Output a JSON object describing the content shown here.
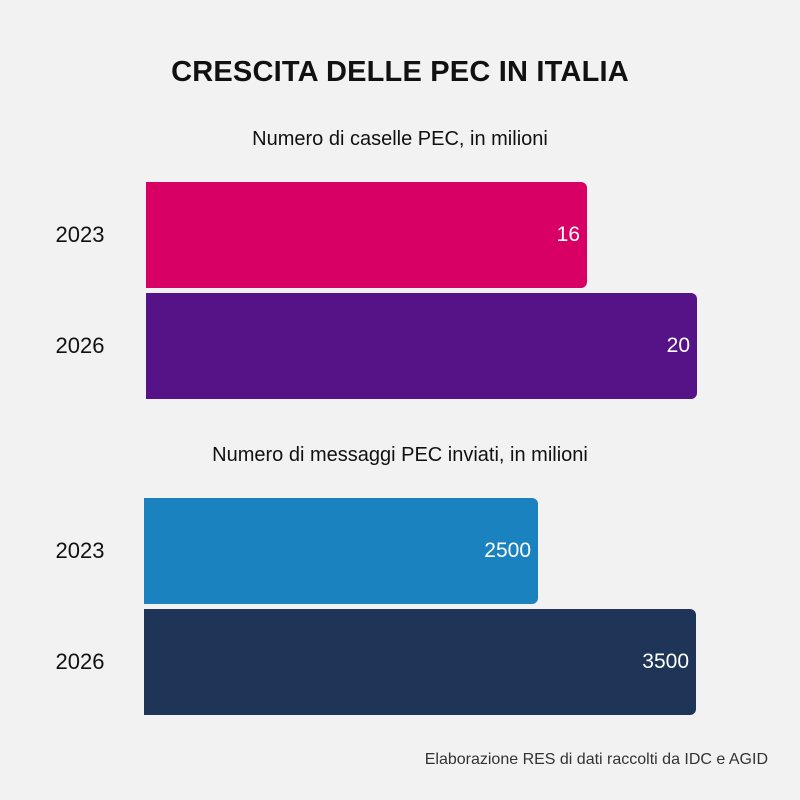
{
  "title": "CRESCITA DELLE PEC IN ITALIA",
  "source": "Elaborazione RES di dati raccolti da IDC e AGID",
  "chart_data": [
    {
      "type": "bar",
      "orientation": "horizontal",
      "title": "Numero di caselle PEC, in milioni",
      "categories": [
        "2023",
        "2026"
      ],
      "values": [
        16,
        20
      ],
      "data_labels": [
        "16",
        "20"
      ],
      "colors": [
        "#d80064",
        "#561387"
      ],
      "unit": "milioni",
      "grid": false
    },
    {
      "type": "bar",
      "orientation": "horizontal",
      "title": "Numero di messaggi PEC inviati, in milioni",
      "categories": [
        "2023",
        "2026"
      ],
      "values": [
        2500,
        3500
      ],
      "data_labels": [
        "2500",
        "3500"
      ],
      "colors": [
        "#1a82be",
        "#1e3557"
      ],
      "unit": "milioni",
      "grid": false
    }
  ]
}
